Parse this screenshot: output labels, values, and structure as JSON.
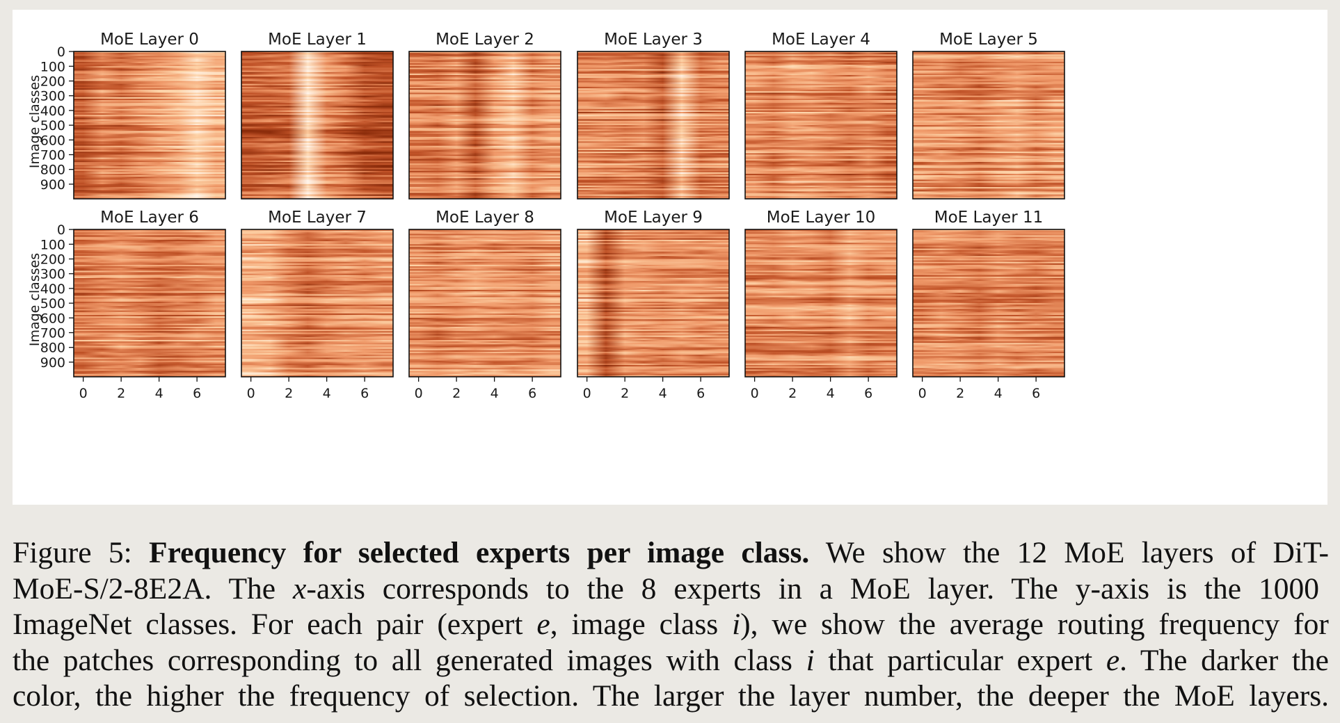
{
  "figure": {
    "panel_titles": [
      "MoE Layer 0",
      "MoE Layer 1",
      "MoE Layer 2",
      "MoE Layer 3",
      "MoE Layer 4",
      "MoE Layer 5",
      "MoE Layer 6",
      "MoE Layer 7",
      "MoE Layer 8",
      "MoE Layer 9",
      "MoE Layer 10",
      "MoE Layer 11"
    ],
    "y_axis_label": "Image classes",
    "y_ticks": [
      "0",
      "100",
      "200",
      "300",
      "400",
      "500",
      "600",
      "700",
      "800",
      "900"
    ],
    "x_ticks": [
      "0",
      "2",
      "4",
      "6"
    ],
    "colormap": [
      "#fff5eb",
      "#fdd2a6",
      "#f09a6a",
      "#c05227",
      "#8a2b0a"
    ]
  },
  "chart_data": {
    "type": "heatmap",
    "layers": 12,
    "experts_per_layer": 8,
    "image_classes": 1000,
    "x_tick_values": [
      0,
      2,
      4,
      6
    ],
    "y_tick_values": [
      0,
      100,
      200,
      300,
      400,
      500,
      600,
      700,
      800,
      900
    ],
    "xlim": [
      -0.5,
      7.5
    ],
    "ylim": [
      999.5,
      -0.5
    ],
    "expert_frequency_profile": [
      [
        0.7,
        0.55,
        0.6,
        0.52,
        0.45,
        0.38,
        0.2,
        0.35
      ],
      [
        0.75,
        0.72,
        0.7,
        0.15,
        0.55,
        0.65,
        0.8,
        0.82
      ],
      [
        0.58,
        0.6,
        0.5,
        0.72,
        0.45,
        0.3,
        0.55,
        0.48
      ],
      [
        0.55,
        0.55,
        0.6,
        0.58,
        0.72,
        0.28,
        0.62,
        0.58
      ],
      [
        0.52,
        0.58,
        0.48,
        0.5,
        0.55,
        0.6,
        0.52,
        0.62
      ],
      [
        0.5,
        0.52,
        0.55,
        0.58,
        0.5,
        0.45,
        0.55,
        0.48
      ],
      [
        0.58,
        0.55,
        0.52,
        0.55,
        0.62,
        0.58,
        0.55,
        0.5
      ],
      [
        0.38,
        0.4,
        0.52,
        0.62,
        0.55,
        0.5,
        0.52,
        0.48
      ],
      [
        0.55,
        0.6,
        0.55,
        0.52,
        0.55,
        0.55,
        0.58,
        0.52
      ],
      [
        0.4,
        0.78,
        0.5,
        0.52,
        0.55,
        0.52,
        0.55,
        0.55
      ],
      [
        0.55,
        0.55,
        0.52,
        0.55,
        0.58,
        0.45,
        0.55,
        0.52
      ],
      [
        0.55,
        0.52,
        0.55,
        0.6,
        0.52,
        0.55,
        0.58,
        0.55
      ]
    ]
  },
  "caption": {
    "lines": [
      [
        {
          "t": "Figure 5: "
        },
        {
          "t": "Frequency for selected experts per image class.",
          "s": "b"
        },
        {
          "t": " We show the 12 MoE layers of DiT-"
        }
      ],
      [
        {
          "t": "MoE-S/2-8E2A. The "
        },
        {
          "t": "x",
          "s": "i"
        },
        {
          "t": "-axis corresponds to the 8 experts in a MoE layer.  The y-axis is the 1000"
        }
      ],
      [
        {
          "t": "ImageNet classes. For each pair (expert "
        },
        {
          "t": "e",
          "s": "i"
        },
        {
          "t": ", image class "
        },
        {
          "t": "i",
          "s": "i"
        },
        {
          "t": "), we show the average routing frequency for"
        }
      ],
      [
        {
          "t": "the patches corresponding to all generated images with class "
        },
        {
          "t": "i",
          "s": "i"
        },
        {
          "t": " that particular expert "
        },
        {
          "t": "e",
          "s": "i"
        },
        {
          "t": ". The darker the"
        }
      ],
      [
        {
          "t": "color, the higher the frequency of selection. The larger the layer number, the deeper the MoE layers."
        }
      ]
    ]
  }
}
